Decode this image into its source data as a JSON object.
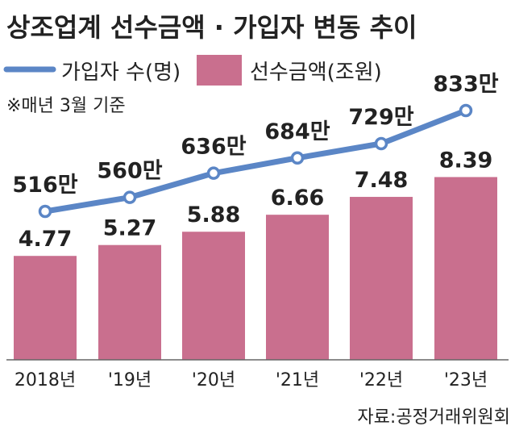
{
  "chart_data": {
    "type": "bar",
    "title": "상조업계 선수금액 · 가입자 변동 추이",
    "note": "※매년 3월 기준",
    "source": "자료:공정거래위원회",
    "categories": [
      "2018년",
      "'19년",
      "'20년",
      "'21년",
      "'22년",
      "'23년"
    ],
    "series": [
      {
        "name": "선수금액(조원)",
        "type": "bar",
        "color": "#c96f8e",
        "values": [
          4.77,
          5.27,
          5.88,
          6.66,
          7.48,
          8.39
        ],
        "labels": [
          "4.77",
          "5.27",
          "5.88",
          "6.66",
          "7.48",
          "8.39"
        ]
      },
      {
        "name": "가입자 수(명)",
        "type": "line",
        "color": "#5b86c6",
        "values": [
          516,
          560,
          636,
          684,
          729,
          833
        ],
        "labels": [
          "516만",
          "560만",
          "636만",
          "684만",
          "729만",
          "833만"
        ]
      }
    ],
    "grid": false,
    "legend_position": "top-left"
  }
}
